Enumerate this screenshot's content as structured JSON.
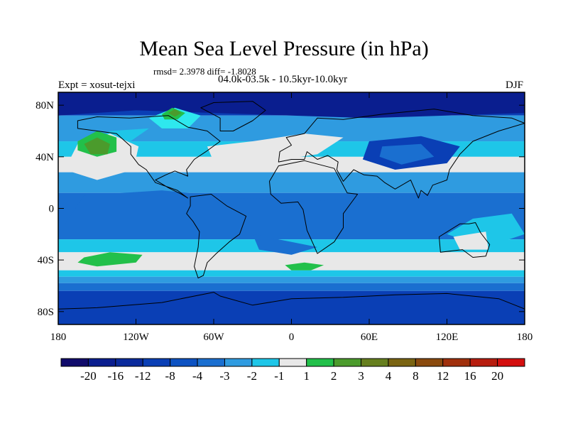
{
  "header": {
    "title": "Mean Sea Level Pressure (in hPa)",
    "stats": "rmsd= 2.3978 diff= -1.8028",
    "period": "04.0k-03.5k - 10.5kyr-10.0kyr",
    "experiment": "Expt = xosut-tejxi",
    "season": "DJF"
  },
  "colors": {
    "dark_navy": "#100b6b",
    "navy": "#0a1e8f",
    "blue": "#0a3fb5",
    "mid_blue": "#1a6fd0",
    "light_blue": "#2f9be0",
    "sky": "#1ec6e8",
    "cyan": "#2ee8ee",
    "white_band": "#e8e8e8",
    "green": "#22c04a",
    "olive_green": "#4b9b2c",
    "olive": "#667f1e",
    "brown_olive": "#7a6412",
    "brown": "#8a4a0e",
    "dark_orange": "#a0300c",
    "red_brown": "#b71d0f",
    "red": "#d40f0f"
  },
  "chart_data": {
    "type": "heatmap",
    "title": "Mean Sea Level Pressure (in hPa)",
    "subtitle": "rmsd= 2.3978 diff= -1.8028",
    "x_axis": {
      "label": "",
      "range": [
        -180,
        180
      ],
      "ticks": [
        -180,
        -120,
        -60,
        0,
        60,
        120,
        180
      ],
      "tick_labels": [
        "180",
        "120W",
        "60W",
        "0",
        "60E",
        "120E",
        "180"
      ]
    },
    "y_axis": {
      "label": "",
      "range": [
        -90,
        90
      ],
      "ticks": [
        80,
        40,
        0,
        -40,
        -80
      ],
      "tick_labels": [
        "80N",
        "40N",
        "0",
        "40S",
        "80S"
      ]
    },
    "colorbar": {
      "levels": [
        "-20",
        "-16",
        "-12",
        "-8",
        "-4",
        "-3",
        "-2",
        "-1",
        "1",
        "2",
        "3",
        "4",
        "8",
        "12",
        "16",
        "20"
      ],
      "bins": [
        {
          "range": "< -20",
          "color": "#100b6b"
        },
        {
          "range": "-20 to -16",
          "color": "#0a1e8f"
        },
        {
          "range": "-16 to -12",
          "color": "#0a2a9c"
        },
        {
          "range": "-12 to -8",
          "color": "#0a3fb5"
        },
        {
          "range": "-8 to -4",
          "color": "#0d52c2"
        },
        {
          "range": "-4 to -3",
          "color": "#1a6fd0"
        },
        {
          "range": "-3 to -2",
          "color": "#2f9be0"
        },
        {
          "range": "-2 to -1",
          "color": "#1ec6e8"
        },
        {
          "range": "-1 to 1",
          "color": "#e8e8e8"
        },
        {
          "range": "1 to 2",
          "color": "#22c04a"
        },
        {
          "range": "2 to 3",
          "color": "#4b9b2c"
        },
        {
          "range": "3 to 4",
          "color": "#667f1e"
        },
        {
          "range": "4 to 8",
          "color": "#7a6412"
        },
        {
          "range": "8 to 12",
          "color": "#8a4a0e"
        },
        {
          "range": "12 to 16",
          "color": "#a0300c"
        },
        {
          "range": "16 to 20",
          "color": "#b71d0f"
        },
        {
          "range": "> 20",
          "color": "#d40f0f"
        }
      ]
    },
    "features": [
      {
        "region": "Antarctica / Southern Ocean south of 60S",
        "value_range": "-8 to -4"
      },
      {
        "region": "Arctic / North Pacific high latitudes",
        "value_range": "-8 to -4"
      },
      {
        "region": "Mid-latitude belt around 50S",
        "value_range": "-1 to 1"
      },
      {
        "region": "North Pacific centre near 150W 40N",
        "value_range": "2 to 3"
      },
      {
        "region": "South Pacific near 150W 40S",
        "value_range": "1 to 2"
      },
      {
        "region": "South Atlantic near 0E 45S",
        "value_range": "1 to 2"
      },
      {
        "region": "Canadian Arctic near 90W 75N",
        "value_range": "2 to 3"
      },
      {
        "region": "Tropics",
        "value_range": "-3 to -1"
      }
    ]
  }
}
